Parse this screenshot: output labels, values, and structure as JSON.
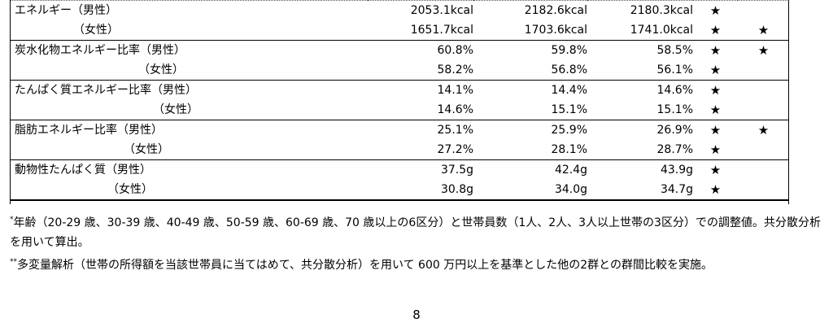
{
  "table": {
    "rows": [
      {
        "label": "エネルギー（男性）",
        "sub": false,
        "v1": "2053.1kcal",
        "v2": "2182.6kcal",
        "v3": "2180.3kcal",
        "s1": "★",
        "s2": ""
      },
      {
        "label": "（女性）",
        "sub": true,
        "v1": "1651.7kcal",
        "v2": "1703.6kcal",
        "v3": "1741.0kcal",
        "s1": "★",
        "s2": "★"
      },
      {
        "label": "炭水化物エネルギー比率（男性）",
        "sub": false,
        "v1": "60.8%",
        "v2": "59.8%",
        "v3": "58.5%",
        "s1": "★",
        "s2": "★"
      },
      {
        "label": "（女性）",
        "sub": true,
        "v1": "58.2%",
        "v2": "56.8%",
        "v3": "56.1%",
        "s1": "★",
        "s2": ""
      },
      {
        "label": "たんぱく質エネルギー比率（男性）",
        "sub": false,
        "v1": "14.1%",
        "v2": "14.4%",
        "v3": "14.6%",
        "s1": "★",
        "s2": ""
      },
      {
        "label": "（女性）",
        "sub": true,
        "v1": "14.6%",
        "v2": "15.1%",
        "v3": "15.1%",
        "s1": "★",
        "s2": ""
      },
      {
        "label": "脂肪エネルギー比率（男性）",
        "sub": false,
        "v1": "25.1%",
        "v2": "25.9%",
        "v3": "26.9%",
        "s1": "★",
        "s2": "★"
      },
      {
        "label": "（女性）",
        "sub": true,
        "v1": "27.2%",
        "v2": "28.1%",
        "v3": "28.7%",
        "s1": "★",
        "s2": ""
      },
      {
        "label": "動物性たんぱく質（男性）",
        "sub": false,
        "v1": "37.5g",
        "v2": "42.4g",
        "v3": "43.9g",
        "s1": "★",
        "s2": ""
      },
      {
        "label": "（女性）",
        "sub": true,
        "v1": "30.8g",
        "v2": "34.0g",
        "v3": "34.7g",
        "s1": "★",
        "s2": ""
      }
    ]
  },
  "notes": {
    "note1_mark": "*",
    "note1_text": "年齢（20-29 歳、30-39 歳、40-49 歳、50-59 歳、60-69 歳、70 歳以上の6区分）と世帯員数（1人、2人、3人以上世帯の3区分）での調整値。共分散分析を用いて算出。",
    "note2_mark": "**",
    "note2_text": "多変量解析（世帯の所得額を当該世帯員に当てはめて、共分散分析）を用いて 600 万円以上を基準とした他の2群との群間比較を実施。"
  },
  "page_number": "8"
}
